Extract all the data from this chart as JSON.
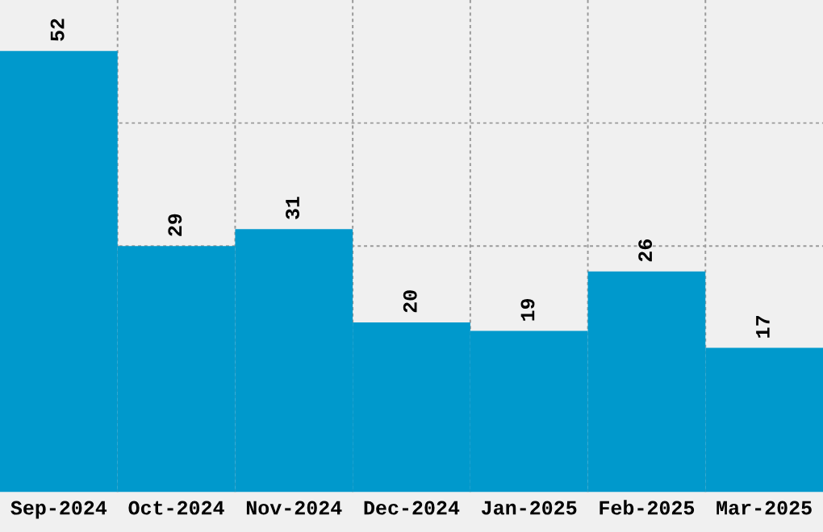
{
  "chart_data": {
    "type": "bar",
    "categories": [
      "Sep-2024",
      "Oct-2024",
      "Nov-2024",
      "Dec-2024",
      "Jan-2025",
      "Feb-2025",
      "Mar-2025"
    ],
    "values": [
      52,
      29,
      31,
      20,
      19,
      26,
      17
    ],
    "color": "#0099cc",
    "data_labels": true,
    "grid": true,
    "tick_labels": "x",
    "ylim": [
      0,
      58
    ],
    "yticks": [
      {
        "value": 14.5,
        "label": null
      },
      {
        "value": 29,
        "label": null
      },
      {
        "value": 43.5,
        "label": null
      }
    ]
  }
}
